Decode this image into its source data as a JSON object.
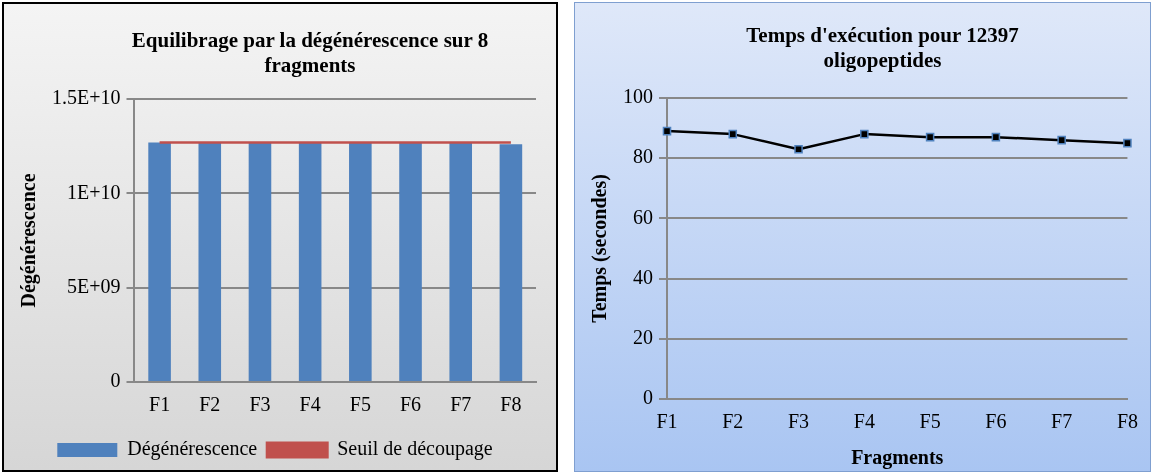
{
  "chart_data": [
    {
      "type": "bar",
      "title": "Equilibrage par la dégénérescence sur 8 fragments",
      "ylabel": "Dégénérescence",
      "categories": [
        "F1",
        "F2",
        "F3",
        "F4",
        "F5",
        "F6",
        "F7",
        "F8"
      ],
      "series": [
        {
          "name": "Dégénérescence",
          "color": "#4f81bd",
          "values": [
            12700000000.0,
            12700000000.0,
            12700000000.0,
            12700000000.0,
            12700000000.0,
            12700000000.0,
            12700000000.0,
            12600000000.0
          ]
        },
        {
          "name": "Seuil de découpage",
          "type": "line",
          "color": "#c0504d",
          "values": [
            12700000000.0,
            12700000000.0,
            12700000000.0,
            12700000000.0,
            12700000000.0,
            12700000000.0,
            12700000000.0,
            12700000000.0
          ]
        }
      ],
      "ylim": [
        0,
        15000000000.0
      ],
      "yticks": [
        0,
        {
          "value": 5000000000.0,
          "label": "5E+09"
        },
        {
          "value": 10000000000.0,
          "label": "1E+10"
        },
        {
          "value": 15000000000.0,
          "label": "1.5E+10"
        }
      ],
      "grid": "y",
      "legend": "bottom",
      "marker": "none"
    },
    {
      "type": "line",
      "title": "Temps d'exécution pour 12397 oligopeptides",
      "xlabel": "Fragments",
      "ylabel": "Temps (secondes)",
      "categories": [
        "F1",
        "F2",
        "F3",
        "F4",
        "F5",
        "F6",
        "F7",
        "F8"
      ],
      "series": [
        {
          "color": "#000000",
          "values": [
            89,
            88,
            83,
            88,
            87,
            87,
            86,
            85
          ]
        }
      ],
      "ylim": [
        0,
        100
      ],
      "yticks": [
        0,
        20,
        40,
        60,
        80,
        100
      ],
      "grid": "y",
      "legend": false,
      "marker": "square"
    }
  ]
}
